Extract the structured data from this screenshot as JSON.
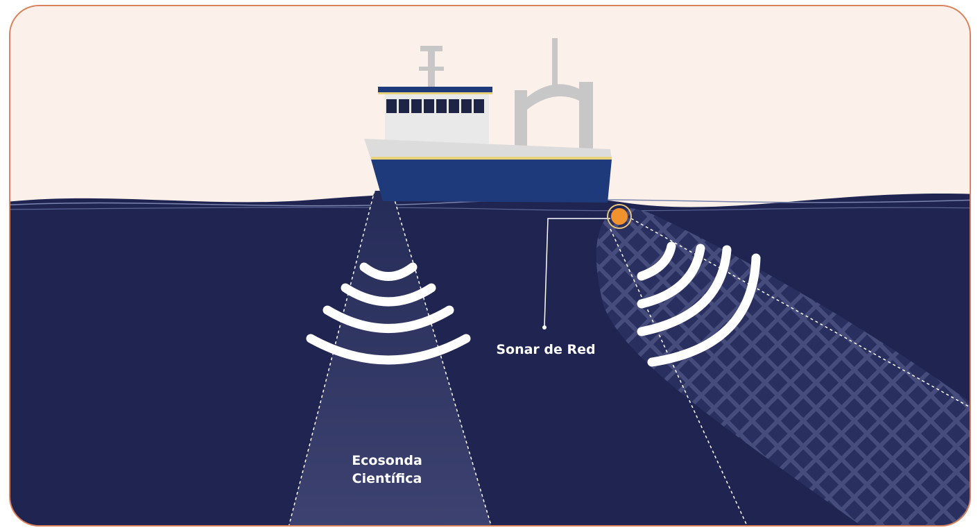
{
  "labels": {
    "net_sonar": "Sonar de Red",
    "echosounder": [
      "Ecosonda",
      "Científica"
    ]
  }
}
